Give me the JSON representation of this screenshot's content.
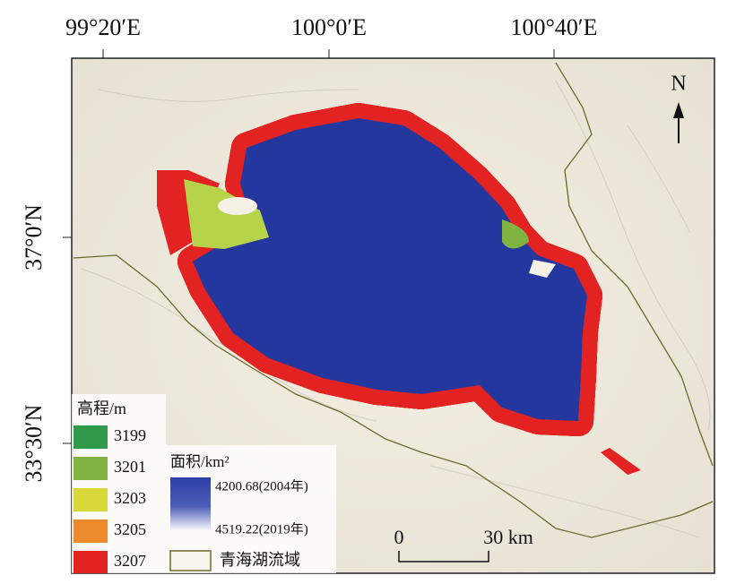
{
  "map": {
    "lon_labels": [
      "99°20′E",
      "100°0′E",
      "100°40′E"
    ],
    "lat_labels": [
      "37°0′N",
      "33°30′N"
    ],
    "north": "N",
    "elevation_legend": {
      "title": "高程/m",
      "entries": [
        3199,
        3201,
        3203,
        3205,
        3207
      ]
    },
    "area_legend": {
      "title": "面积/km²",
      "top": "4200.68(2004年)",
      "bottom": "4519.22(2019年)"
    },
    "basin_label": "青海湖流域",
    "scale": {
      "start": "0",
      "end": "30 km"
    }
  }
}
